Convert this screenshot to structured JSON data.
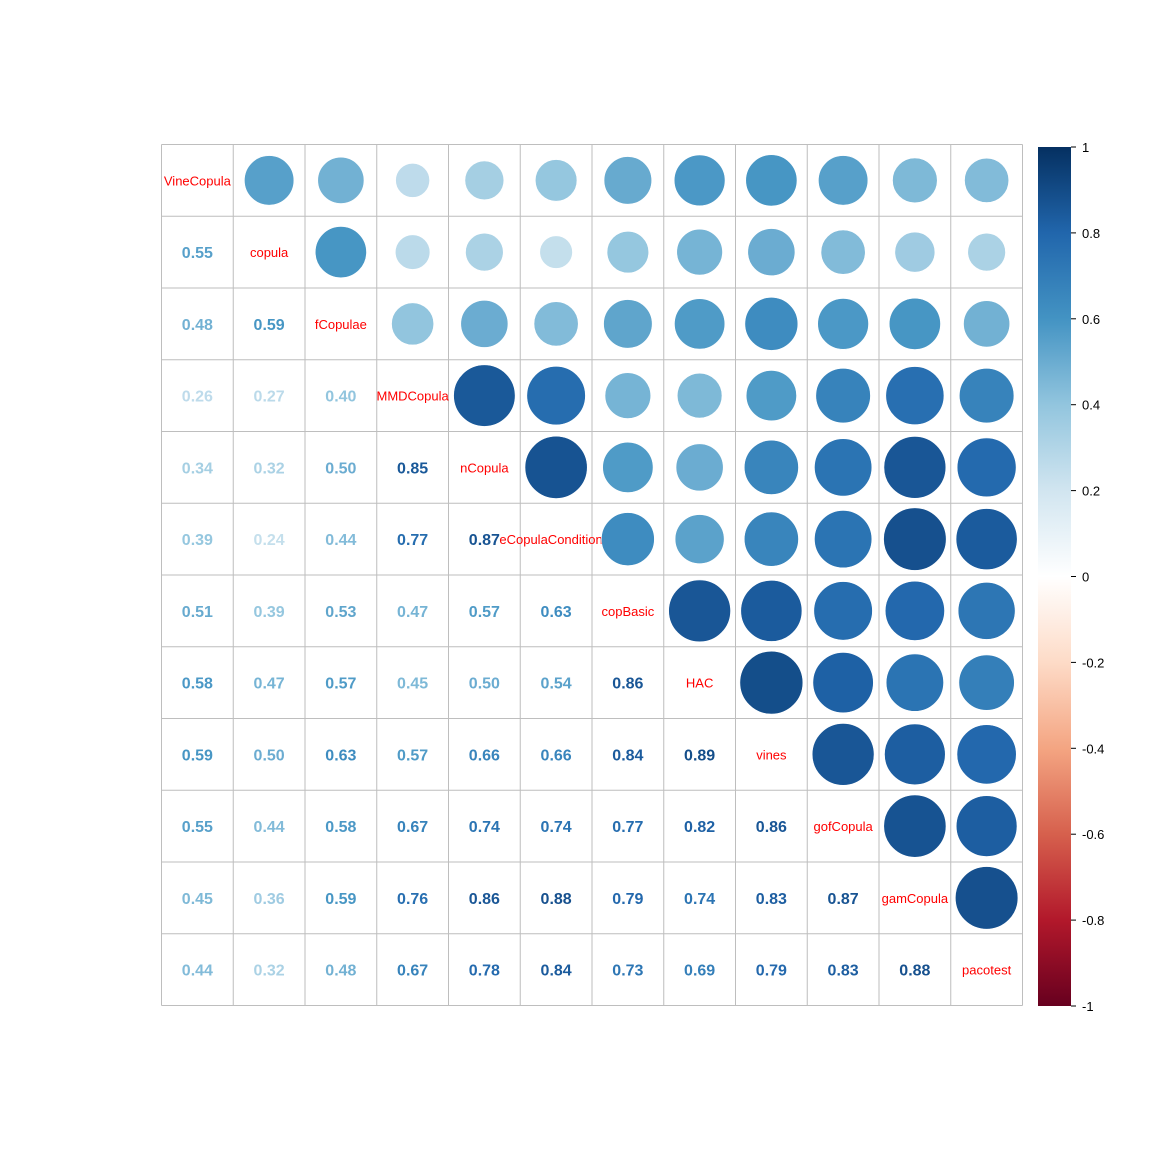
{
  "chart_data": {
    "type": "heatmap",
    "variables": [
      "VineCopula",
      "copula",
      "fCopulae",
      "MMDCopula",
      "nCopula",
      "eCopulaConditional",
      "copBasic",
      "HAC",
      "vines",
      "gofCopula",
      "gamCopula",
      "pacotest"
    ],
    "lower_values": [
      [],
      [
        "0.55"
      ],
      [
        "0.48",
        "0.59"
      ],
      [
        "0.26",
        "0.27",
        "0.40"
      ],
      [
        "0.34",
        "0.32",
        "0.50",
        "0.85"
      ],
      [
        "0.39",
        "0.24",
        "0.44",
        "0.77",
        "0.87"
      ],
      [
        "0.51",
        "0.39",
        "0.53",
        "0.47",
        "0.57",
        "0.63"
      ],
      [
        "0.58",
        "0.47",
        "0.57",
        "0.45",
        "0.50",
        "0.54",
        "0.86"
      ],
      [
        "0.59",
        "0.50",
        "0.63",
        "0.57",
        "0.66",
        "0.66",
        "0.84",
        "0.89"
      ],
      [
        "0.55",
        "0.44",
        "0.58",
        "0.67",
        "0.74",
        "0.74",
        "0.77",
        "0.82",
        "0.86"
      ],
      [
        "0.45",
        "0.36",
        "0.59",
        "0.76",
        "0.86",
        "0.88",
        "0.79",
        "0.74",
        "0.83",
        "0.87"
      ],
      [
        "0.44",
        "0.32",
        "0.48",
        "0.67",
        "0.78",
        "0.84",
        "0.73",
        "0.69",
        "0.79",
        "0.83",
        "0.88"
      ]
    ],
    "upper_display": "circle",
    "lower_display": "number",
    "diagonal_display": "variable name",
    "color_scale": {
      "range": [
        -1,
        1
      ],
      "tick_labels": [
        "-1",
        "-0.8",
        "-0.6",
        "-0.4",
        "-0.2",
        "0",
        "0.2",
        "0.4",
        "0.6",
        "0.8",
        "1"
      ],
      "colors": [
        "#67001F",
        "#B2182B",
        "#D6604D",
        "#F4A582",
        "#FDDBC7",
        "#FFFFFF",
        "#D1E5F0",
        "#92C5DE",
        "#4393C3",
        "#2166AC",
        "#053061"
      ]
    },
    "label_color": "#FF0000",
    "grid": true,
    "legend_position": "right"
  }
}
